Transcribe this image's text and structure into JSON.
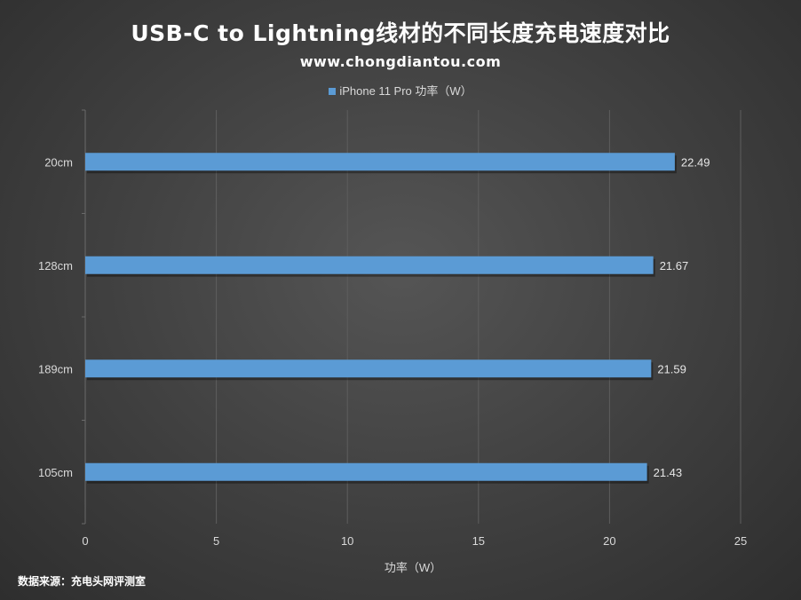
{
  "chart_data": {
    "type": "bar",
    "orientation": "horizontal",
    "title": "USB-C to Lightning线材的不同长度充电速度对比",
    "subtitle": "www.chongdiantou.com",
    "categories": [
      "20cm",
      "128cm",
      "189cm",
      "105cm"
    ],
    "series": [
      {
        "name": "iPhone 11 Pro 功率（W）",
        "values": [
          22.49,
          21.67,
          21.59,
          21.43
        ],
        "color": "#5b9bd5"
      }
    ],
    "data_labels": [
      "22.49",
      "21.67",
      "21.59",
      "21.43"
    ],
    "xlabel": "功率（W）",
    "ylabel": "",
    "xlim": [
      0,
      25
    ],
    "x_ticks": [
      0,
      5,
      10,
      15,
      20,
      25
    ],
    "x_tick_labels": [
      "0",
      "5",
      "10",
      "15",
      "20",
      "25"
    ],
    "grid": true,
    "legend_position": "top"
  },
  "source": "数据来源：充电头网评测室"
}
